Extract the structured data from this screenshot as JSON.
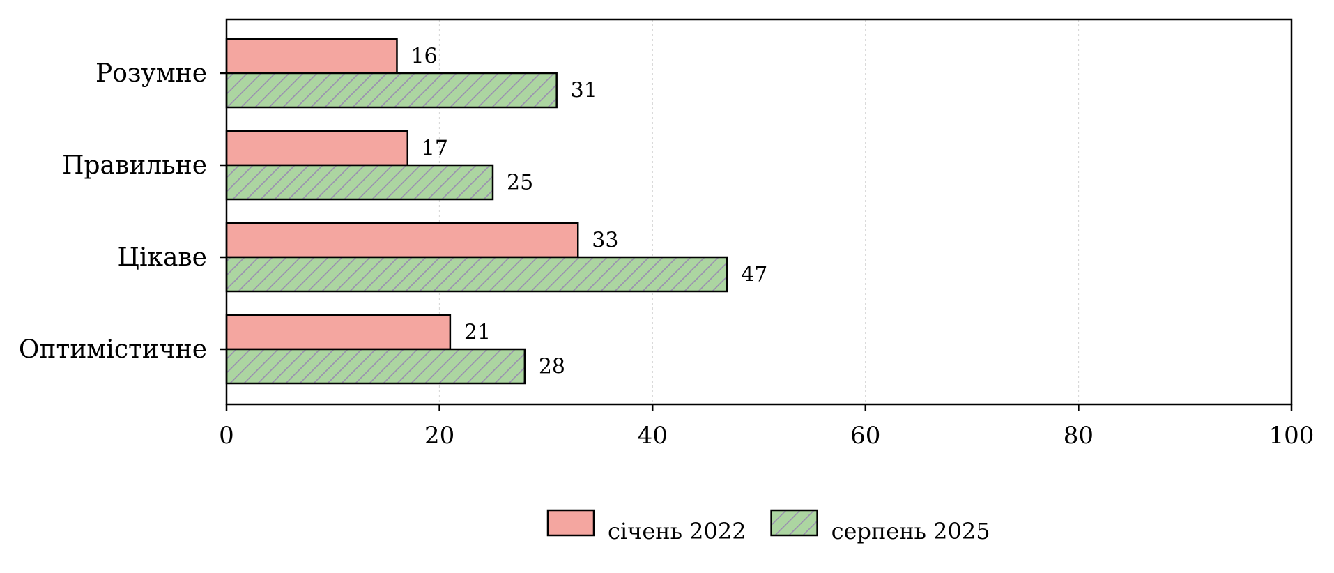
{
  "chart_data": {
    "type": "bar",
    "orientation": "horizontal",
    "categories": [
      "Розумне",
      "Правильне",
      "Цікаве",
      "Оптимістичне"
    ],
    "series": [
      {
        "name": "січень 2022",
        "values": [
          16,
          17,
          33,
          21
        ],
        "color": "#f4a6a0",
        "hatch": false
      },
      {
        "name": "серпень 2025",
        "values": [
          31,
          25,
          47,
          28
        ],
        "color": "#acd5a1",
        "hatch": true,
        "hatch_color": "#9a8fb0"
      }
    ],
    "xlim": [
      0,
      100
    ],
    "xticks": [
      0,
      20,
      40,
      60,
      80,
      100
    ],
    "grid": "vertical-dotted",
    "legend_position": "bottom-center",
    "data_labels": true
  }
}
